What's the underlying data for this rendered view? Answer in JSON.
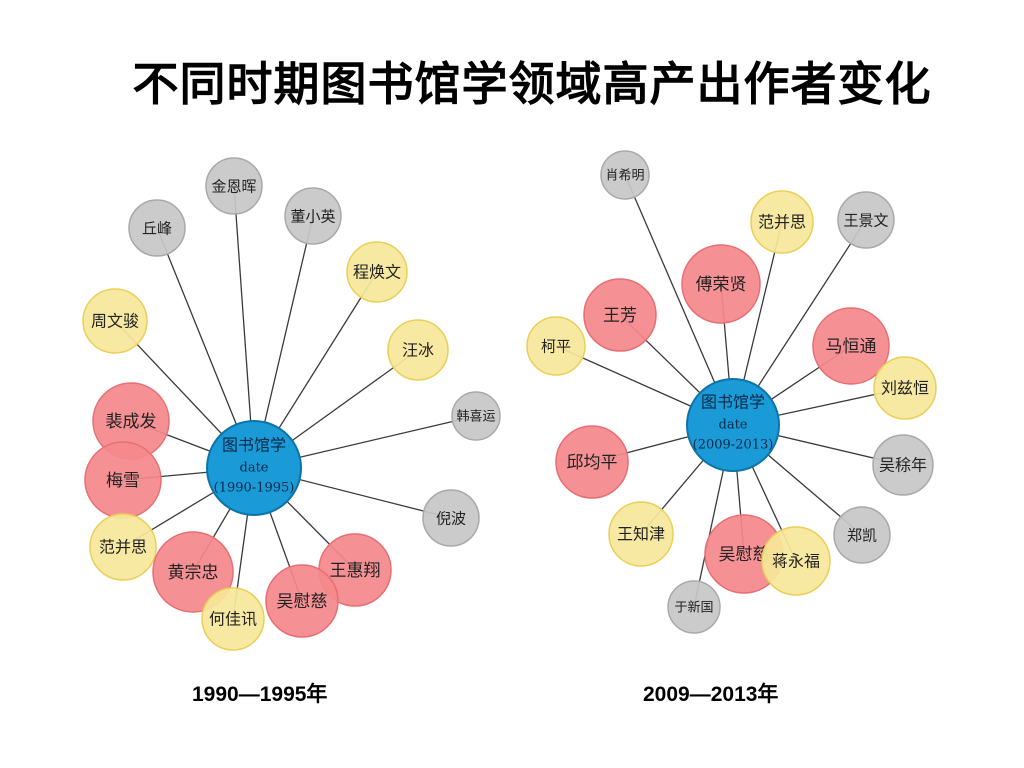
{
  "title": "不同时期图书馆学领域高产出作者变化",
  "colors": {
    "pink": "#f4898c",
    "pink_stroke": "#e86e73",
    "yellow": "#f6e79a",
    "yellow_stroke": "#e9cf58",
    "gray": "#c7c7c7",
    "gray_stroke": "#a9a9a9",
    "center": "#1a9ad6",
    "center_stroke": "#0d73a8",
    "edge": "#3a3a3a"
  },
  "networks": [
    {
      "caption": "1990—1995年",
      "center": {
        "line1": "图书馆学",
        "line2": "date",
        "line3": "(1990-1995)"
      },
      "nodes": [
        {
          "label": "金恩晖",
          "kind": "gray"
        },
        {
          "label": "丘峰",
          "kind": "gray"
        },
        {
          "label": "董小英",
          "kind": "gray"
        },
        {
          "label": "程焕文",
          "kind": "yellow"
        },
        {
          "label": "周文骏",
          "kind": "yellow"
        },
        {
          "label": "汪冰",
          "kind": "yellow"
        },
        {
          "label": "韩喜运",
          "kind": "gray"
        },
        {
          "label": "裴成发",
          "kind": "pink"
        },
        {
          "label": "梅雪",
          "kind": "pink"
        },
        {
          "label": "倪波",
          "kind": "gray"
        },
        {
          "label": "范并思",
          "kind": "yellow"
        },
        {
          "label": "黄宗忠",
          "kind": "pink"
        },
        {
          "label": "王惠翔",
          "kind": "pink"
        },
        {
          "label": "何佳讯",
          "kind": "yellow"
        },
        {
          "label": "吴慰慈",
          "kind": "pink"
        }
      ]
    },
    {
      "caption": "2009—2013年",
      "center": {
        "line1": "图书馆学",
        "line2": "date",
        "line3": "(2009-2013)"
      },
      "nodes": [
        {
          "label": "肖希明",
          "kind": "gray"
        },
        {
          "label": "范并思",
          "kind": "yellow"
        },
        {
          "label": "王景文",
          "kind": "gray"
        },
        {
          "label": "傅荣贤",
          "kind": "pink"
        },
        {
          "label": "王芳",
          "kind": "pink"
        },
        {
          "label": "马恒通",
          "kind": "pink"
        },
        {
          "label": "柯平",
          "kind": "yellow"
        },
        {
          "label": "刘兹恒",
          "kind": "yellow"
        },
        {
          "label": "邱均平",
          "kind": "pink"
        },
        {
          "label": "吴稌年",
          "kind": "gray"
        },
        {
          "label": "王知津",
          "kind": "yellow"
        },
        {
          "label": "郑凯",
          "kind": "gray"
        },
        {
          "label": "吴慰慈",
          "kind": "pink"
        },
        {
          "label": "蒋永福",
          "kind": "yellow"
        },
        {
          "label": "于新国",
          "kind": "gray"
        }
      ]
    }
  ]
}
